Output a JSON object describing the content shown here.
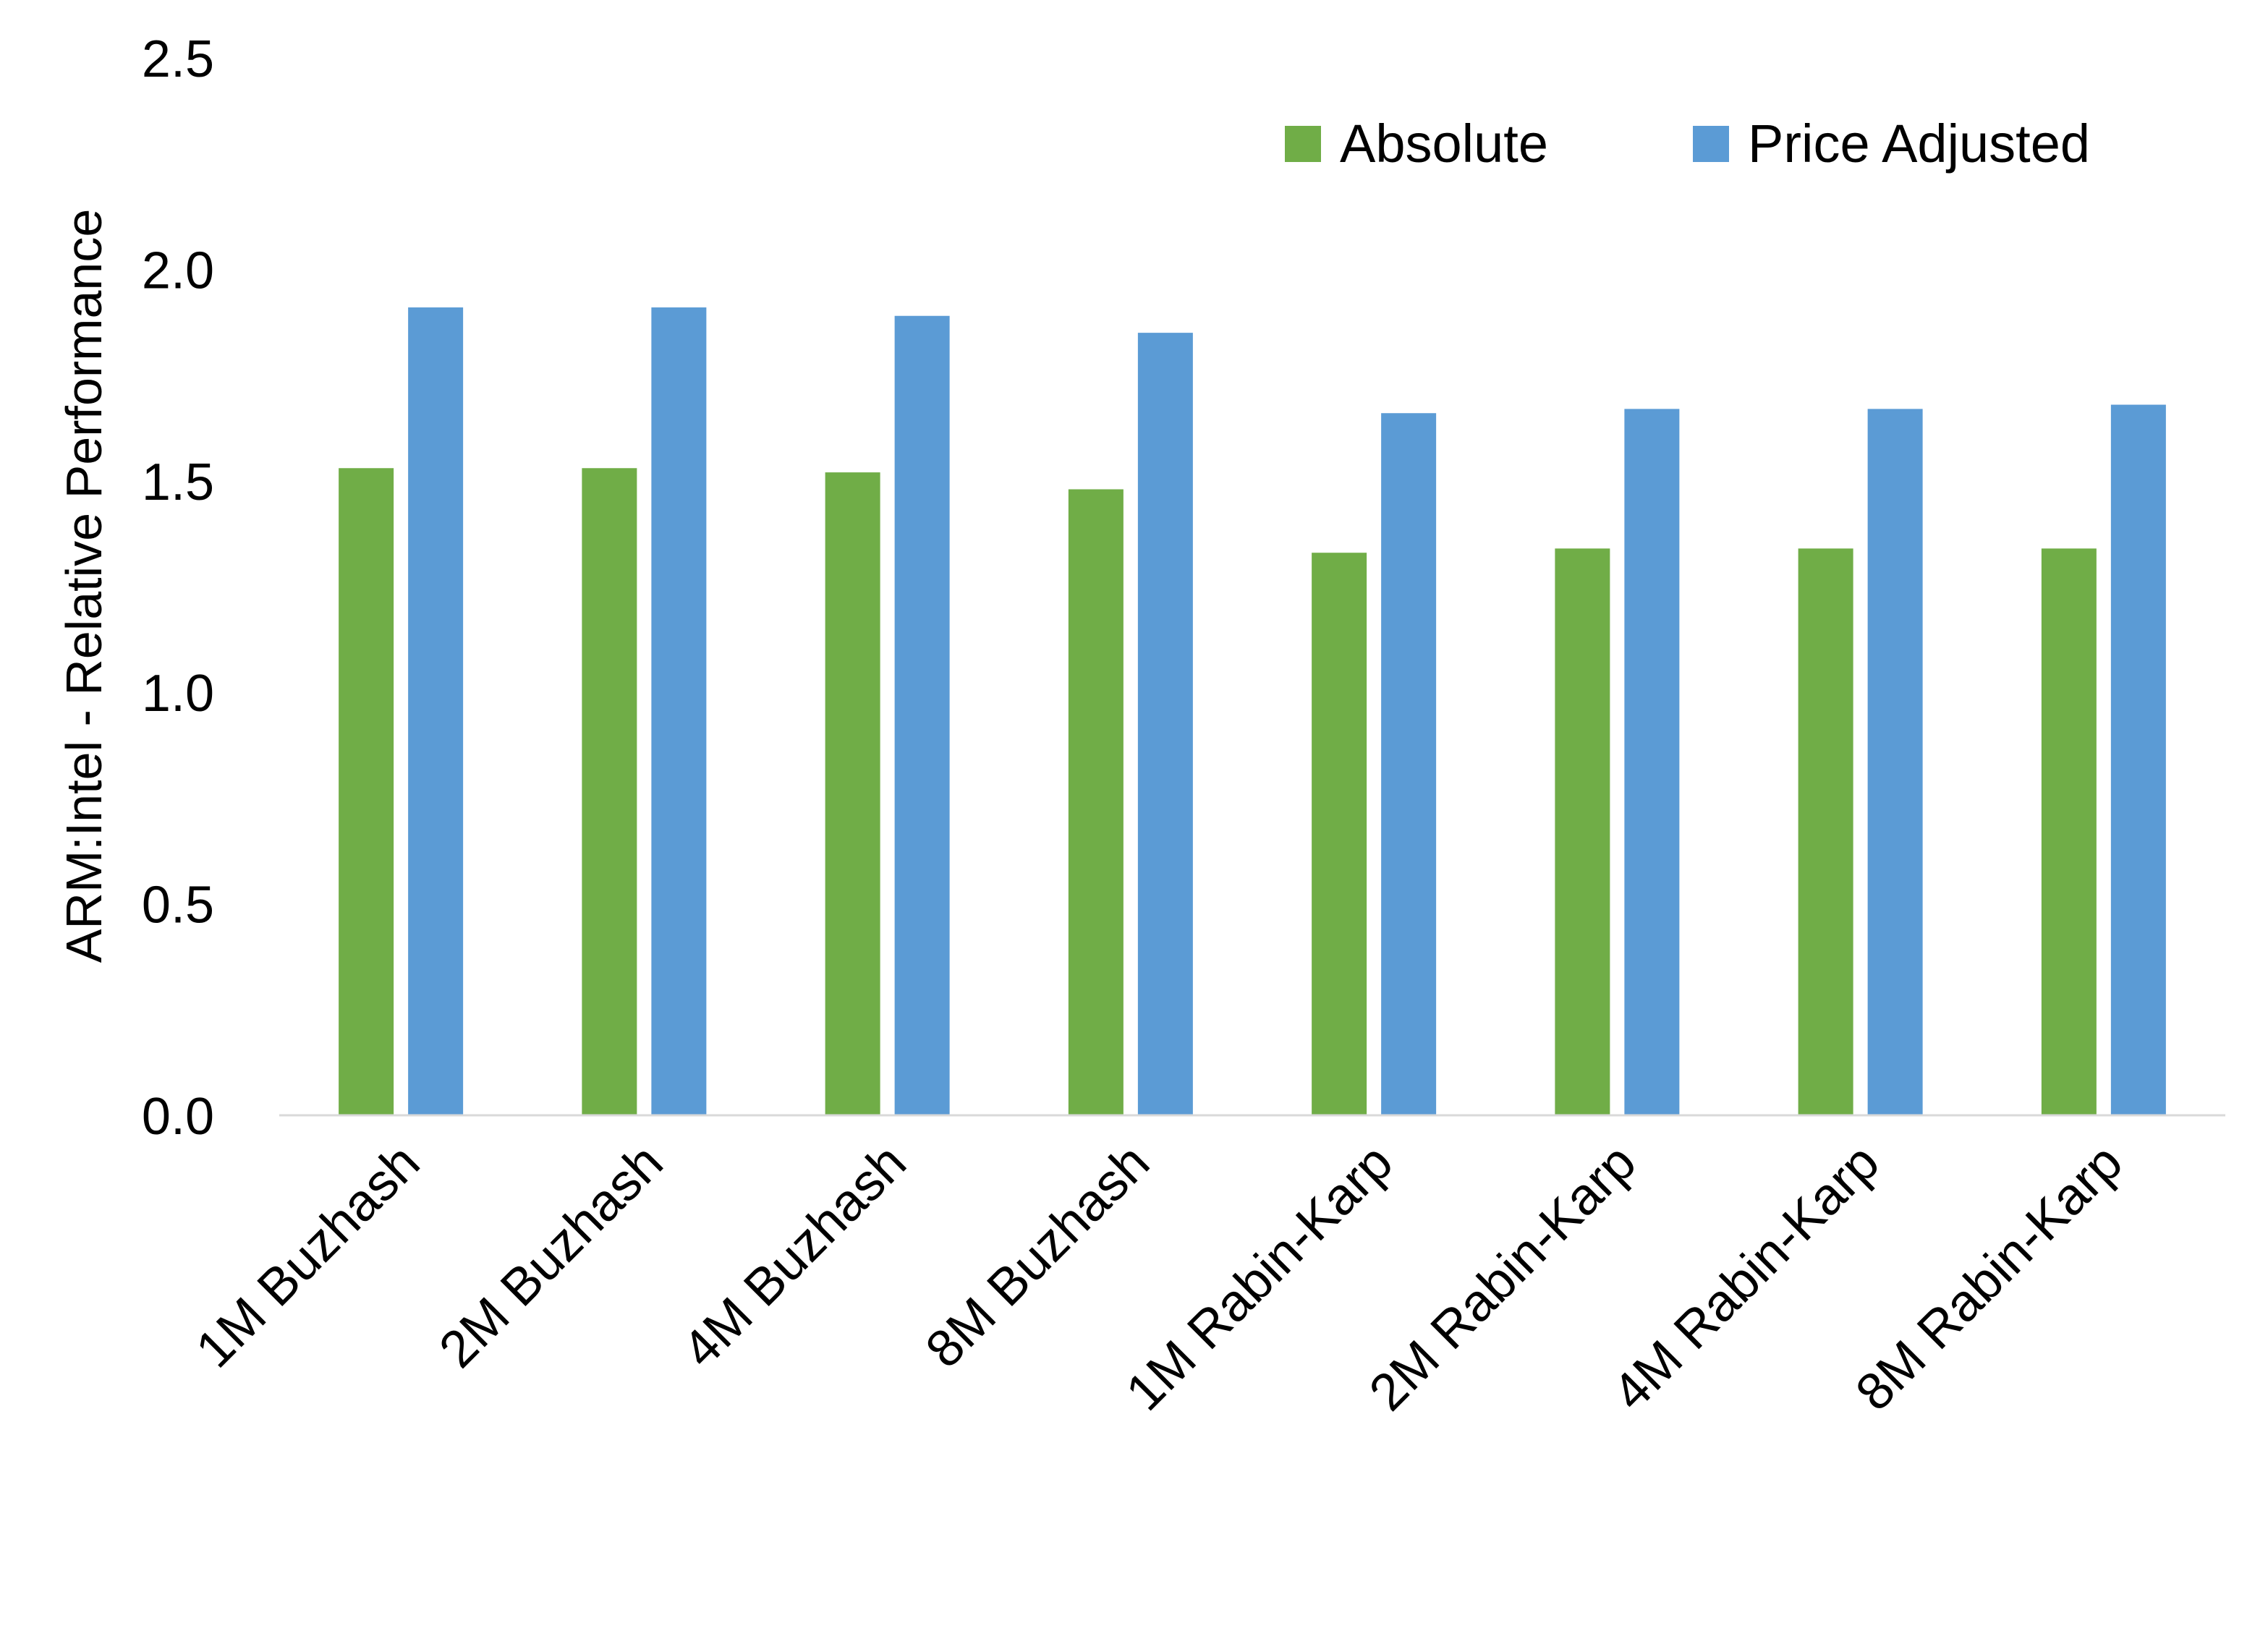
{
  "chart_data": {
    "type": "bar",
    "title": "",
    "xlabel": "",
    "ylabel": "ARM:Intel - Relative Performance",
    "ylim": [
      0,
      2.5
    ],
    "yticks": [
      "0.0",
      "0.5",
      "1.0",
      "1.5",
      "2.0",
      "2.5"
    ],
    "grid": false,
    "legend_position": "top-right",
    "categories": [
      "1M Buzhash",
      "2M Buzhash",
      "4M Buzhash",
      "8M Buzhash",
      "1M Rabin-Karp",
      "2M Rabin-Karp",
      "4M Rabin-Karp",
      "8M Rabin-Karp"
    ],
    "series": [
      {
        "name": "Absolute",
        "color": "#70AD47",
        "values": [
          1.53,
          1.53,
          1.52,
          1.48,
          1.33,
          1.34,
          1.34,
          1.34
        ]
      },
      {
        "name": "Price Adjusted",
        "color": "#5B9BD5",
        "values": [
          1.91,
          1.91,
          1.89,
          1.85,
          1.66,
          1.67,
          1.67,
          1.68
        ]
      }
    ]
  }
}
